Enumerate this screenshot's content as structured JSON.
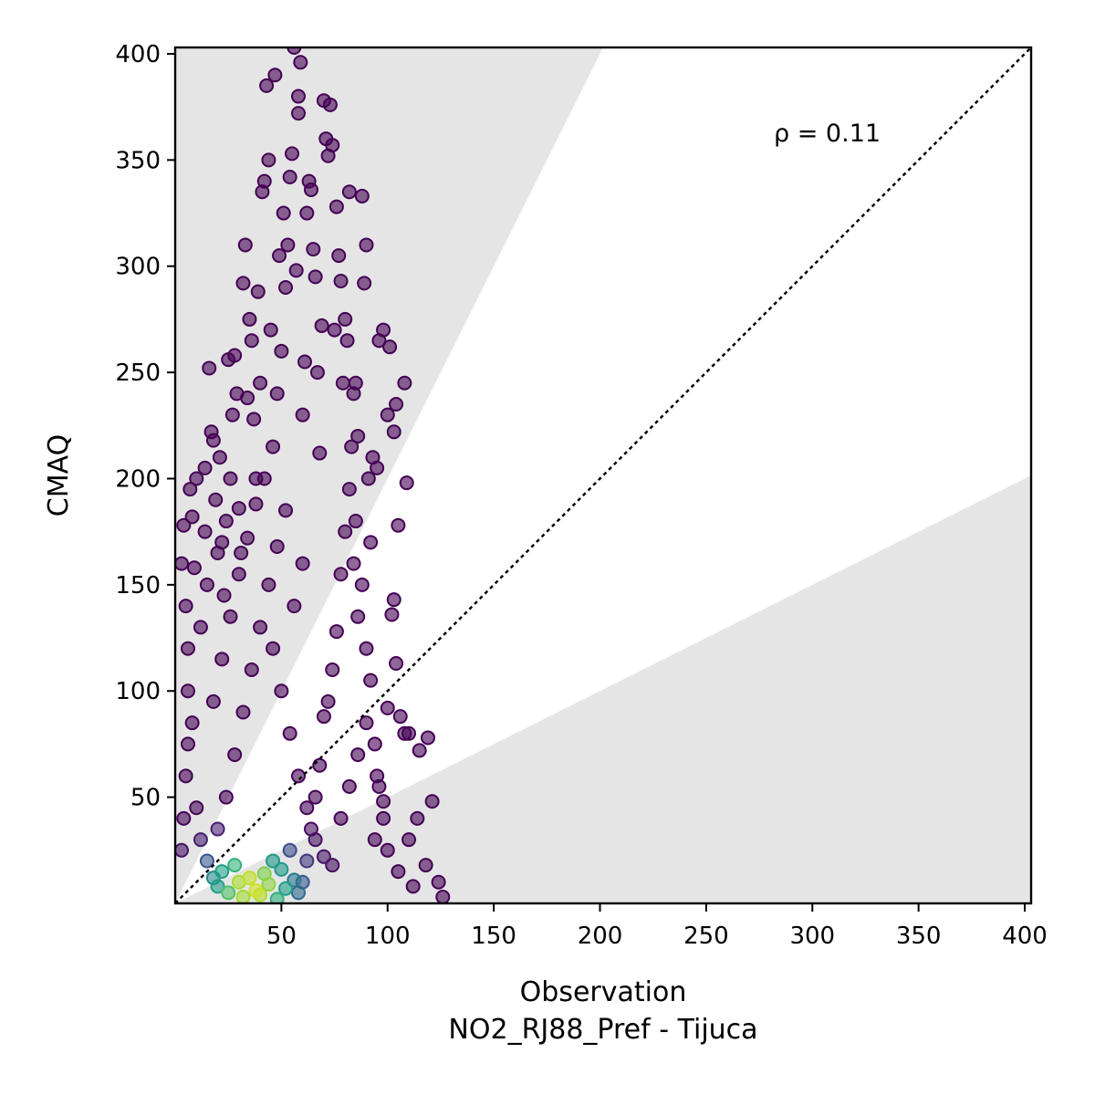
{
  "chart_data": {
    "type": "scatter",
    "title": "",
    "xlabel": "Observation",
    "xlabel_sub": "NO2_RJ88_Pref - Tijuca",
    "ylabel": "CMAQ",
    "xlim": [
      0,
      403
    ],
    "ylim": [
      0,
      403
    ],
    "x_ticks": [
      50,
      100,
      150,
      200,
      250,
      300,
      350,
      400
    ],
    "y_ticks": [
      50,
      100,
      150,
      200,
      250,
      300,
      350,
      400
    ],
    "annotation": "ρ = 0.11",
    "reference_line": {
      "label": "1:1",
      "style": "dotted",
      "color": "#000000"
    },
    "shaded_band": {
      "description": "outside factor-of-2 region",
      "upper_slope": 2,
      "lower_slope": 0.5,
      "color": "#e5e5e5"
    },
    "colormap": "viridis",
    "grid": false,
    "marker_alpha": 0.6,
    "points": [
      [
        3,
        160
      ],
      [
        4,
        178
      ],
      [
        5,
        140
      ],
      [
        6,
        120
      ],
      [
        7,
        195
      ],
      [
        8,
        182
      ],
      [
        6,
        100
      ],
      [
        9,
        158
      ],
      [
        10,
        200
      ],
      [
        12,
        130
      ],
      [
        14,
        205
      ],
      [
        14,
        175
      ],
      [
        15,
        150
      ],
      [
        16,
        252
      ],
      [
        17,
        222
      ],
      [
        18,
        218
      ],
      [
        19,
        190
      ],
      [
        20,
        165
      ],
      [
        21,
        210
      ],
      [
        22,
        170
      ],
      [
        23,
        145
      ],
      [
        24,
        180
      ],
      [
        25,
        256
      ],
      [
        26,
        200
      ],
      [
        27,
        230
      ],
      [
        28,
        258
      ],
      [
        29,
        240
      ],
      [
        30,
        186
      ],
      [
        31,
        165
      ],
      [
        32,
        292
      ],
      [
        33,
        310
      ],
      [
        34,
        238
      ],
      [
        35,
        275
      ],
      [
        36,
        265
      ],
      [
        37,
        228
      ],
      [
        38,
        200
      ],
      [
        39,
        288
      ],
      [
        40,
        245
      ],
      [
        41,
        335
      ],
      [
        42,
        340
      ],
      [
        43,
        385
      ],
      [
        44,
        350
      ],
      [
        45,
        270
      ],
      [
        46,
        215
      ],
      [
        47,
        390
      ],
      [
        48,
        240
      ],
      [
        49,
        305
      ],
      [
        50,
        260
      ],
      [
        51,
        325
      ],
      [
        52,
        290
      ],
      [
        53,
        310
      ],
      [
        54,
        342
      ],
      [
        55,
        353
      ],
      [
        56,
        403
      ],
      [
        57,
        298
      ],
      [
        58,
        380
      ],
      [
        58,
        372
      ],
      [
        59,
        396
      ],
      [
        60,
        230
      ],
      [
        61,
        255
      ],
      [
        62,
        325
      ],
      [
        63,
        340
      ],
      [
        64,
        336
      ],
      [
        65,
        308
      ],
      [
        66,
        295
      ],
      [
        67,
        250
      ],
      [
        68,
        212
      ],
      [
        69,
        272
      ],
      [
        70,
        378
      ],
      [
        71,
        360
      ],
      [
        72,
        352
      ],
      [
        73,
        376
      ],
      [
        74,
        357
      ],
      [
        75,
        270
      ],
      [
        76,
        328
      ],
      [
        77,
        305
      ],
      [
        78,
        293
      ],
      [
        79,
        245
      ],
      [
        80,
        275
      ],
      [
        81,
        265
      ],
      [
        82,
        335
      ],
      [
        83,
        215
      ],
      [
        84,
        240
      ],
      [
        85,
        245
      ],
      [
        86,
        220
      ],
      [
        88,
        333
      ],
      [
        89,
        292
      ],
      [
        90,
        310
      ],
      [
        91,
        200
      ],
      [
        92,
        170
      ],
      [
        93,
        210
      ],
      [
        95,
        205
      ],
      [
        96,
        265
      ],
      [
        98,
        270
      ],
      [
        100,
        230
      ],
      [
        101,
        262
      ],
      [
        103,
        222
      ],
      [
        104,
        235
      ],
      [
        105,
        178
      ],
      [
        108,
        245
      ],
      [
        109,
        198
      ],
      [
        110,
        80
      ],
      [
        115,
        72
      ],
      [
        119,
        78
      ],
      [
        121,
        48
      ],
      [
        114,
        40
      ],
      [
        110,
        30
      ],
      [
        118,
        18
      ],
      [
        124,
        10
      ],
      [
        126,
        3
      ],
      [
        95,
        60
      ],
      [
        98,
        48
      ],
      [
        100,
        92
      ],
      [
        102,
        136
      ],
      [
        103,
        143
      ],
      [
        104,
        113
      ],
      [
        106,
        88
      ],
      [
        108,
        80
      ],
      [
        85,
        180
      ],
      [
        88,
        150
      ],
      [
        90,
        120
      ],
      [
        92,
        105
      ],
      [
        94,
        75
      ],
      [
        96,
        55
      ],
      [
        98,
        40
      ],
      [
        100,
        25
      ],
      [
        105,
        15
      ],
      [
        112,
        8
      ],
      [
        82,
        195
      ],
      [
        84,
        160
      ],
      [
        86,
        135
      ],
      [
        80,
        175
      ],
      [
        78,
        155
      ],
      [
        76,
        128
      ],
      [
        74,
        110
      ],
      [
        72,
        95
      ],
      [
        70,
        88
      ],
      [
        68,
        65
      ],
      [
        66,
        50
      ],
      [
        64,
        35
      ],
      [
        62,
        20
      ],
      [
        60,
        10
      ],
      [
        58,
        5
      ],
      [
        5,
        60
      ],
      [
        6,
        75
      ],
      [
        4,
        40
      ],
      [
        3,
        25
      ],
      [
        8,
        85
      ],
      [
        10,
        45
      ],
      [
        12,
        30
      ],
      [
        15,
        20
      ],
      [
        18,
        12
      ],
      [
        20,
        8
      ],
      [
        22,
        15
      ],
      [
        25,
        5
      ],
      [
        28,
        18
      ],
      [
        30,
        10
      ],
      [
        32,
        3
      ],
      [
        35,
        12
      ],
      [
        38,
        6
      ],
      [
        40,
        4
      ],
      [
        42,
        14
      ],
      [
        44,
        9
      ],
      [
        46,
        20
      ],
      [
        48,
        2
      ],
      [
        50,
        16
      ],
      [
        52,
        7
      ],
      [
        54,
        25
      ],
      [
        56,
        11
      ],
      [
        20,
        35
      ],
      [
        24,
        50
      ],
      [
        28,
        70
      ],
      [
        32,
        90
      ],
      [
        36,
        110
      ],
      [
        40,
        130
      ],
      [
        44,
        150
      ],
      [
        48,
        168
      ],
      [
        52,
        185
      ],
      [
        56,
        140
      ],
      [
        60,
        160
      ],
      [
        18,
        95
      ],
      [
        22,
        115
      ],
      [
        26,
        135
      ],
      [
        30,
        155
      ],
      [
        34,
        172
      ],
      [
        38,
        188
      ],
      [
        42,
        200
      ],
      [
        46,
        120
      ],
      [
        50,
        100
      ],
      [
        54,
        80
      ],
      [
        58,
        60
      ],
      [
        62,
        45
      ],
      [
        66,
        30
      ],
      [
        70,
        22
      ],
      [
        74,
        18
      ],
      [
        78,
        40
      ],
      [
        82,
        55
      ],
      [
        86,
        70
      ],
      [
        90,
        85
      ],
      [
        94,
        30
      ]
    ]
  }
}
